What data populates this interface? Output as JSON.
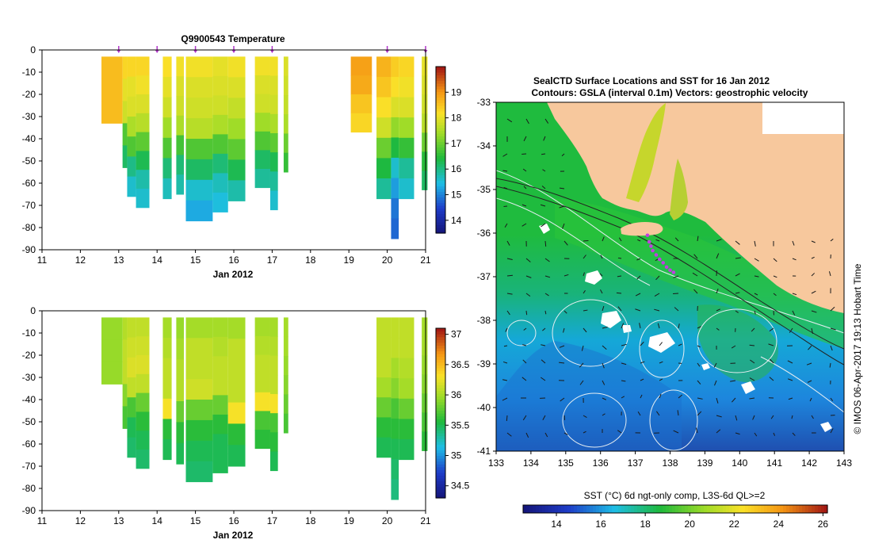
{
  "chart_data": [
    {
      "type": "heatmap",
      "title": "Q9900543  Temperature",
      "xlabel": "Jan 2012",
      "ylabel": "",
      "xlim": [
        11,
        21
      ],
      "ylim": [
        -90,
        0
      ],
      "x_ticks": [
        11,
        12,
        13,
        14,
        15,
        16,
        17,
        18,
        19,
        20,
        21
      ],
      "y_ticks": [
        0,
        -10,
        -20,
        -30,
        -40,
        -50,
        -60,
        -70,
        -80,
        -90
      ],
      "markers": [
        13.0,
        14.0,
        15.0,
        16.0,
        17.0,
        20.0,
        21.0
      ],
      "colorbar": {
        "min": 13.5,
        "max": 20,
        "ticks": [
          14,
          15,
          16,
          17,
          18,
          19
        ]
      },
      "profiles": [
        {
          "x0": 12.55,
          "x1": 13.1,
          "top": -3,
          "bottom": -33,
          "values": [
            18.6,
            18.6,
            18.6
          ]
        },
        {
          "x0": 13.1,
          "x1": 13.22,
          "top": -3,
          "bottom": -53,
          "values": [
            18.3,
            18.0,
            17.8,
            16.8,
            16.2
          ]
        },
        {
          "x0": 13.22,
          "x1": 13.45,
          "top": -3,
          "bottom": -66,
          "values": [
            18.3,
            18.0,
            17.9,
            17.5,
            16.8,
            16.0,
            15.6
          ]
        },
        {
          "x0": 13.45,
          "x1": 13.8,
          "top": -3,
          "bottom": -71,
          "values": [
            18.3,
            18.1,
            17.9,
            17.6,
            16.9,
            16.3,
            15.8,
            15.6
          ]
        },
        {
          "x0": 14.15,
          "x1": 14.38,
          "top": -3,
          "bottom": -67,
          "values": [
            18.2,
            18.0,
            17.8,
            17.4,
            16.8,
            16.1,
            15.7
          ]
        },
        {
          "x0": 14.5,
          "x1": 14.7,
          "top": -3,
          "bottom": -65,
          "values": [
            18.1,
            17.9,
            17.8,
            17.5,
            16.7,
            16.1,
            15.8
          ]
        },
        {
          "x0": 14.75,
          "x1": 15.45,
          "top": -3,
          "bottom": -77,
          "values": [
            18.1,
            17.9,
            17.8,
            17.6,
            16.8,
            16.2,
            15.6,
            15.3
          ]
        },
        {
          "x0": 15.45,
          "x1": 15.85,
          "top": -3,
          "bottom": -73,
          "values": [
            18.0,
            17.9,
            17.8,
            17.5,
            16.8,
            16.1,
            15.7,
            15.5
          ]
        },
        {
          "x0": 15.85,
          "x1": 16.3,
          "top": -3,
          "bottom": -68,
          "values": [
            18.1,
            17.9,
            17.7,
            17.4,
            16.9,
            16.3,
            15.8
          ]
        },
        {
          "x0": 16.55,
          "x1": 16.95,
          "top": -3,
          "bottom": -62,
          "values": [
            18.1,
            17.9,
            17.8,
            17.4,
            16.8,
            16.2,
            15.9
          ]
        },
        {
          "x0": 16.95,
          "x1": 17.15,
          "top": -3,
          "bottom": -72,
          "values": [
            18.1,
            17.9,
            17.8,
            17.5,
            16.9,
            16.3,
            15.9,
            15.6
          ]
        },
        {
          "x0": 17.3,
          "x1": 17.42,
          "top": -3,
          "bottom": -55,
          "values": [
            17.9,
            17.8,
            17.7,
            17.5,
            17.0,
            16.6
          ]
        },
        {
          "x0": 19.05,
          "x1": 19.6,
          "top": -3,
          "bottom": -37,
          "values": [
            18.9,
            18.8,
            18.5,
            18.3
          ]
        },
        {
          "x0": 19.72,
          "x1": 20.1,
          "top": -3,
          "bottom": -67,
          "values": [
            18.7,
            18.5,
            18.2,
            17.8,
            17.0,
            16.4,
            15.9
          ]
        },
        {
          "x0": 20.1,
          "x1": 20.3,
          "top": -3,
          "bottom": -85,
          "values": [
            18.4,
            18.2,
            17.9,
            17.3,
            16.4,
            15.6,
            15.2,
            14.9,
            14.8
          ]
        },
        {
          "x0": 20.3,
          "x1": 20.7,
          "top": -3,
          "bottom": -67,
          "values": [
            18.3,
            18.1,
            17.9,
            17.4,
            16.6,
            15.9,
            15.6
          ]
        },
        {
          "x0": 20.9,
          "x1": 21.05,
          "top": -3,
          "bottom": -63,
          "values": [
            18.0,
            17.9,
            17.8,
            17.6,
            17.0,
            16.5,
            16.2
          ]
        }
      ]
    },
    {
      "type": "heatmap",
      "title": "",
      "xlabel": "Jan 2012",
      "ylabel": "",
      "xlim": [
        11,
        21
      ],
      "ylim": [
        -90,
        0
      ],
      "x_ticks": [
        11,
        12,
        13,
        14,
        15,
        16,
        17,
        18,
        19,
        20,
        21
      ],
      "y_ticks": [
        0,
        -10,
        -20,
        -30,
        -40,
        -50,
        -60,
        -70,
        -80,
        -90
      ],
      "colorbar": {
        "min": 34.3,
        "max": 37.1,
        "ticks": [
          34.5,
          35,
          35.5,
          36,
          36.5,
          37
        ]
      },
      "profiles": [
        {
          "x0": 12.55,
          "x1": 13.1,
          "top": -3,
          "bottom": -33,
          "values": [
            35.95,
            35.95,
            35.95
          ]
        },
        {
          "x0": 13.1,
          "x1": 13.22,
          "top": -3,
          "bottom": -53,
          "values": [
            36.05,
            36.1,
            36.1,
            35.9,
            35.7
          ]
        },
        {
          "x0": 13.22,
          "x1": 13.45,
          "top": -3,
          "bottom": -66,
          "values": [
            36.1,
            36.15,
            36.2,
            36.1,
            35.7,
            35.5,
            35.45
          ]
        },
        {
          "x0": 13.45,
          "x1": 13.8,
          "top": -3,
          "bottom": -71,
          "values": [
            36.1,
            36.15,
            36.2,
            36.1,
            35.8,
            35.6,
            35.5,
            35.45
          ]
        },
        {
          "x0": 14.15,
          "x1": 14.38,
          "top": -3,
          "bottom": -67,
          "values": [
            36.0,
            36.05,
            36.1,
            36.1,
            36.3,
            35.6,
            35.5
          ]
        },
        {
          "x0": 14.5,
          "x1": 14.7,
          "top": -3,
          "bottom": -69,
          "values": [
            35.95,
            36.0,
            36.05,
            36.05,
            35.8,
            35.6,
            35.5
          ]
        },
        {
          "x0": 14.75,
          "x1": 15.45,
          "top": -3,
          "bottom": -77,
          "values": [
            36.0,
            36.1,
            36.1,
            36.15,
            35.8,
            35.6,
            35.5,
            35.45
          ]
        },
        {
          "x0": 15.45,
          "x1": 15.85,
          "top": -3,
          "bottom": -73,
          "values": [
            36.0,
            36.05,
            36.1,
            36.1,
            35.8,
            35.6,
            35.5,
            35.5
          ]
        },
        {
          "x0": 15.85,
          "x1": 16.3,
          "top": -3,
          "bottom": -70,
          "values": [
            36.0,
            36.1,
            36.1,
            36.1,
            36.3,
            35.6,
            35.5
          ]
        },
        {
          "x0": 16.55,
          "x1": 16.95,
          "top": -3,
          "bottom": -62,
          "values": [
            36.0,
            36.05,
            36.1,
            36.1,
            36.3,
            35.7,
            35.6
          ]
        },
        {
          "x0": 16.95,
          "x1": 17.15,
          "top": -3,
          "bottom": -72,
          "values": [
            36.0,
            36.05,
            36.1,
            36.1,
            36.3,
            35.7,
            35.6,
            35.5
          ]
        },
        {
          "x0": 17.3,
          "x1": 17.42,
          "top": -3,
          "bottom": -55,
          "values": [
            36.0,
            36.0,
            35.95,
            35.9,
            35.8,
            35.7
          ]
        },
        {
          "x0": 19.72,
          "x1": 20.1,
          "top": -3,
          "bottom": -66,
          "values": [
            36.1,
            36.1,
            36.1,
            36.0,
            35.8,
            35.6,
            35.5
          ]
        },
        {
          "x0": 20.1,
          "x1": 20.3,
          "top": -3,
          "bottom": -85,
          "values": [
            36.1,
            36.1,
            36.0,
            35.9,
            35.7,
            35.6,
            35.5,
            35.45,
            35.4
          ]
        },
        {
          "x0": 20.3,
          "x1": 20.7,
          "top": -3,
          "bottom": -67,
          "values": [
            36.1,
            36.1,
            36.05,
            36.0,
            35.8,
            35.6,
            35.5
          ]
        },
        {
          "x0": 20.9,
          "x1": 21.05,
          "top": -3,
          "bottom": -63,
          "values": [
            36.0,
            36.0,
            35.95,
            35.9,
            35.8,
            35.7,
            35.6
          ]
        }
      ]
    },
    {
      "type": "heatmap",
      "title": "SealCTD Surface Locations and SST for 16 Jan 2012",
      "subtitle": "Contours: GSLA (interval 0.1m) Vectors: geostrophic velocity",
      "xlabel": "",
      "ylabel": "",
      "xlim": [
        133,
        143
      ],
      "ylim": [
        -41,
        -33
      ],
      "x_ticks": [
        133,
        134,
        135,
        136,
        137,
        138,
        139,
        140,
        141,
        142,
        143
      ],
      "y_ticks": [
        -33,
        -34,
        -35,
        -36,
        -37,
        -38,
        -39,
        -40,
        -41
      ],
      "colorbar": {
        "label": "SST (°C) 6d ngt-only comp, L3S-6d QL>=2",
        "min": 12.5,
        "max": 26.2,
        "ticks": [
          14,
          16,
          18,
          20,
          22,
          24,
          26
        ]
      },
      "seal_track": [
        [
          137.35,
          -36.05
        ],
        [
          137.4,
          -36.2
        ],
        [
          137.45,
          -36.3
        ],
        [
          137.5,
          -36.4
        ],
        [
          137.6,
          -36.5
        ],
        [
          137.7,
          -36.6
        ],
        [
          137.8,
          -36.68
        ],
        [
          137.9,
          -36.78
        ],
        [
          138.0,
          -36.85
        ],
        [
          138.1,
          -36.9
        ]
      ],
      "credit": "© IMOS 06-Apr-2017 19:13 Hobart Time"
    }
  ],
  "colors": {
    "land": "#f7c89d",
    "marker": "#b035c8",
    "seal_track": "#c13fe0",
    "shelf_line": "#222222",
    "contour": "#e6eef2"
  }
}
